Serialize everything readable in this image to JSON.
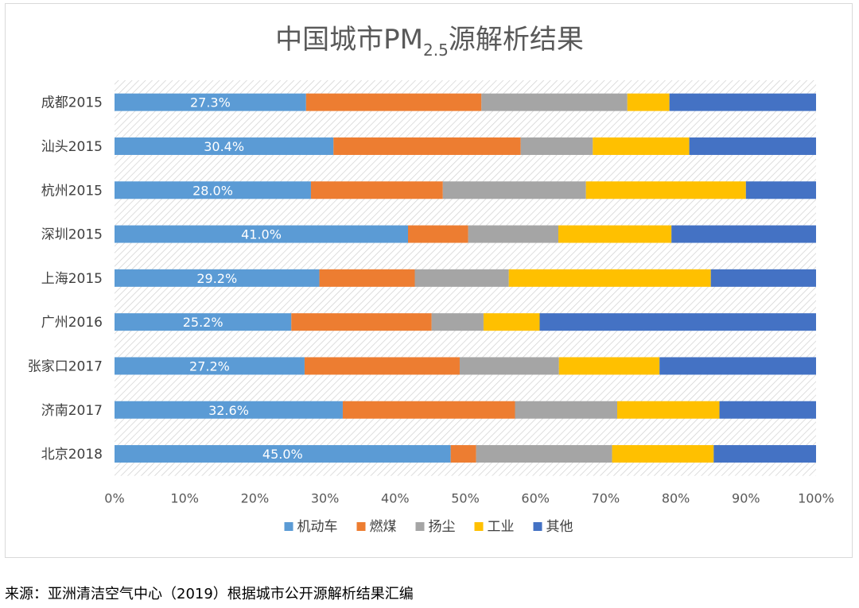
{
  "chart_data": {
    "type": "bar",
    "orientation": "horizontal",
    "stacked": "percent",
    "title": {
      "main": "中国城市PM",
      "subscript": "2.5",
      "suffix": "源解析结果"
    },
    "categories": [
      "成都2015",
      "汕头2015",
      "杭州2015",
      "深圳2015",
      "上海2015",
      "广州2016",
      "张家口2017",
      "济南2017",
      "北京2018"
    ],
    "series": [
      {
        "name": "机动车",
        "color": "#5B9BD5",
        "values": [
          27.3,
          30.4,
          28.0,
          41.0,
          29.2,
          25.2,
          27.2,
          32.6,
          45.0
        ]
      },
      {
        "name": "燃煤",
        "color": "#ED7D31",
        "values": [
          25.0,
          26.0,
          18.8,
          8.4,
          13.6,
          20.0,
          22.2,
          24.6,
          3.4
        ]
      },
      {
        "name": "扬尘",
        "color": "#A5A5A5",
        "values": [
          20.8,
          10.0,
          20.4,
          12.6,
          13.4,
          7.4,
          14.2,
          14.6,
          18.2
        ]
      },
      {
        "name": "工业",
        "color": "#FFC000",
        "values": [
          6.0,
          13.4,
          22.8,
          15.8,
          28.8,
          8.0,
          14.4,
          14.6,
          13.6
        ]
      },
      {
        "name": "其他",
        "color": "#4472C4",
        "values": [
          20.9,
          17.6,
          10.0,
          20.2,
          15.0,
          39.4,
          22.4,
          13.8,
          13.7
        ]
      }
    ],
    "data_labels": [
      "27.3%",
      "30.4%",
      "28.0%",
      "41.0%",
      "29.2%",
      "25.2%",
      "27.2%",
      "32.6%",
      "45.0%"
    ],
    "xlim": [
      0,
      100
    ],
    "x_ticks": [
      "0%",
      "10%",
      "20%",
      "30%",
      "40%",
      "50%",
      "60%",
      "70%",
      "80%",
      "90%",
      "100%"
    ],
    "legend_position": "bottom",
    "xlabel": "",
    "ylabel": ""
  },
  "source_note": "来源：亚洲清洁空气中心（2019）根据城市公开源解析结果汇编"
}
